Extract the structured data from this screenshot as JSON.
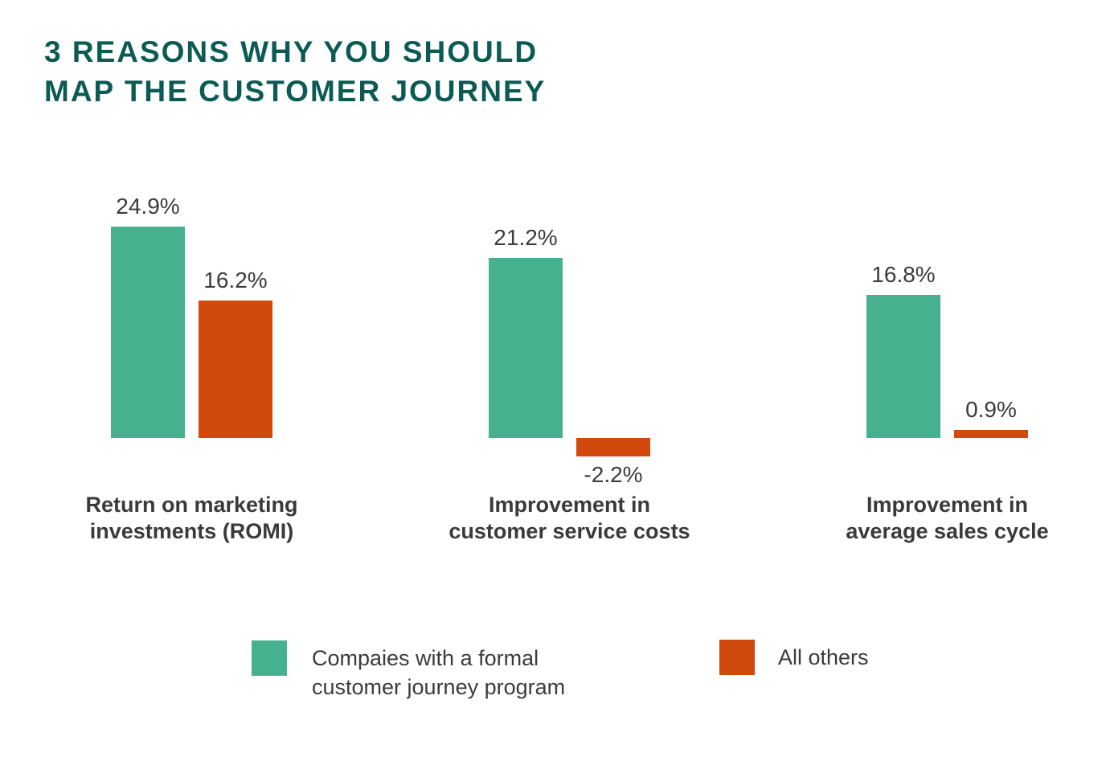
{
  "title": {
    "line1": "3 REASONS WHY YOU SHOULD",
    "line2": "MAP THE CUSTOMER JOURNEY",
    "color": "#0B5B54"
  },
  "chart_data": {
    "type": "bar",
    "title": "3 REASONS WHY YOU SHOULD MAP THE CUSTOMER JOURNEY",
    "unit": "%",
    "categories": [
      "Return on marketing investments (ROMI)",
      "Improvement in customer service costs",
      "Improvement in average sales cycle"
    ],
    "category_lines": [
      [
        "Return on marketing",
        "investments (ROMI)"
      ],
      [
        "Improvement in",
        "customer service costs"
      ],
      [
        "Improvement in",
        "average sales cycle"
      ]
    ],
    "series": [
      {
        "name": "Compaies with a formal customer journey program",
        "color": "#45B18F",
        "values": [
          24.9,
          21.2,
          16.8
        ]
      },
      {
        "name": "All others",
        "color": "#D2490E",
        "values": [
          16.2,
          -2.2,
          0.9
        ]
      }
    ],
    "value_labels": [
      [
        "24.9%",
        "21.2%",
        "16.8%"
      ],
      [
        "16.2%",
        "-2.2%",
        "0.9%"
      ]
    ],
    "ylim": [
      -3,
      27
    ],
    "grid": false,
    "axes_visible": false,
    "legend_position": "bottom"
  },
  "legend": {
    "items": [
      {
        "lines": [
          "Compaies with a formal",
          "customer journey program"
        ],
        "color": "#45B18F"
      },
      {
        "lines": [
          "All others"
        ],
        "color": "#D2490E"
      }
    ]
  },
  "colors": {
    "title": "#0B5B54",
    "teal": "#45B18F",
    "orange": "#D2490E",
    "text": "#3B3B3B",
    "background": "#FFFFFF"
  }
}
